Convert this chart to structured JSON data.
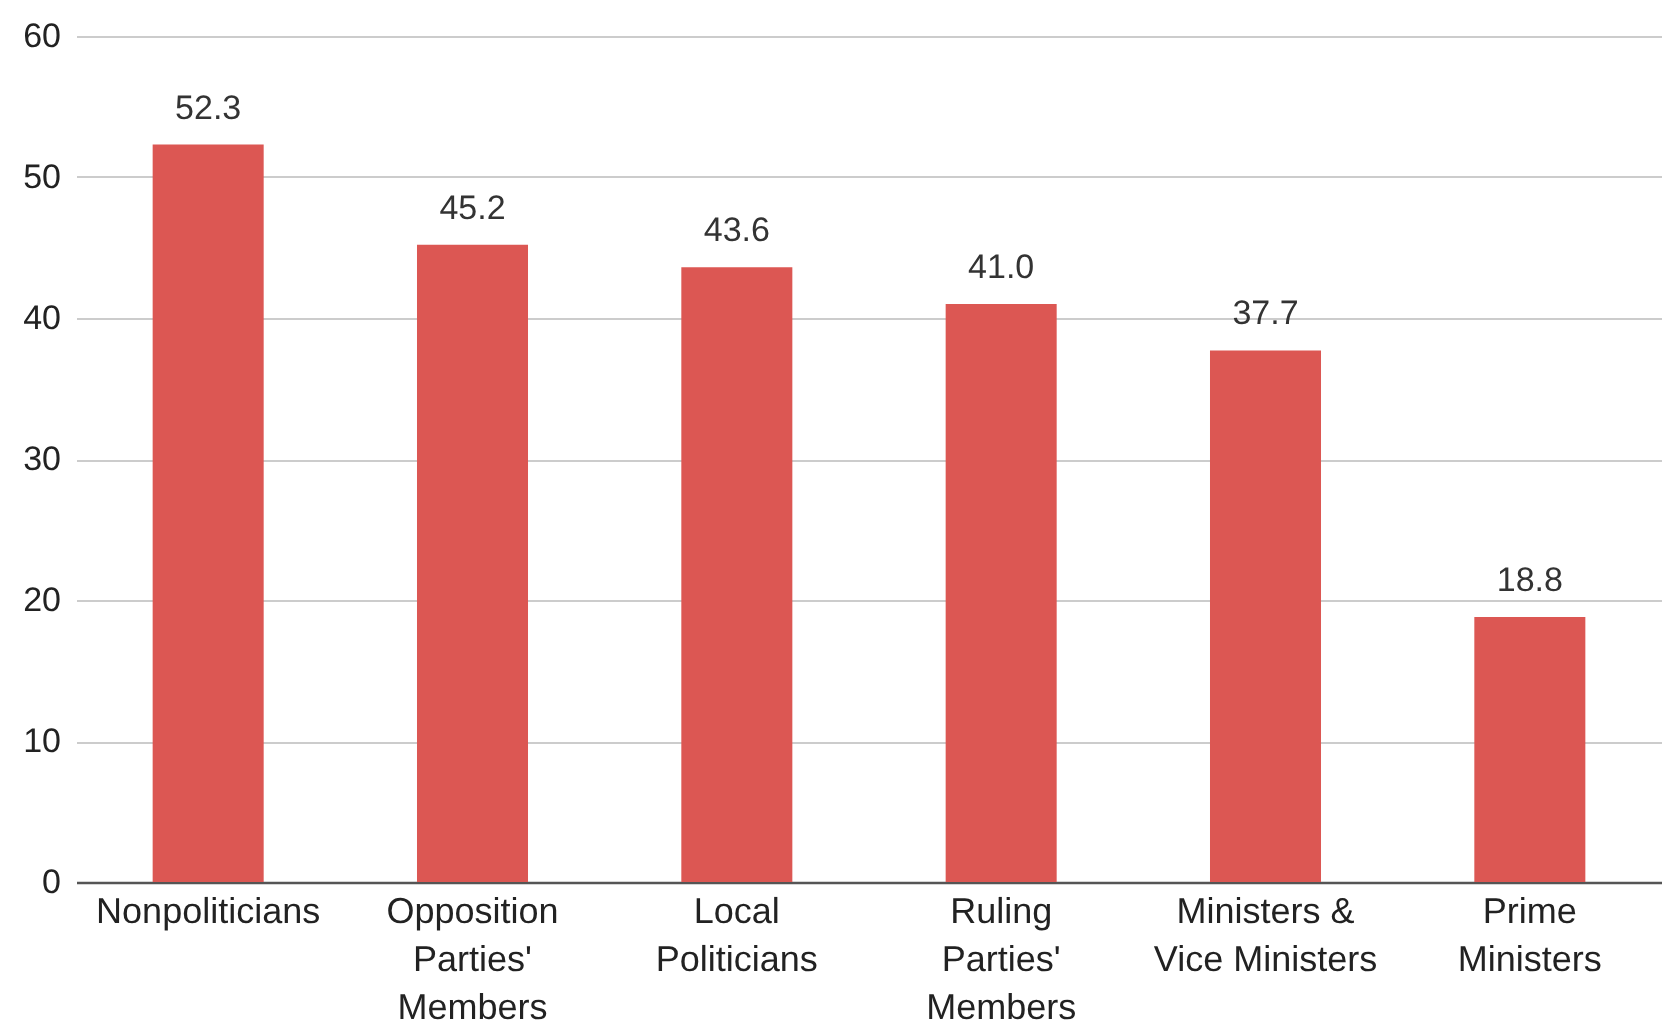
{
  "chart_data": {
    "type": "bar",
    "categories": [
      "Nonpoliticians",
      "Opposition Parties' Members",
      "Local Politicians",
      "Ruling Parties' Members",
      "Ministers & Vice Ministers",
      "Prime Ministers"
    ],
    "values": [
      52.3,
      45.2,
      43.6,
      41.0,
      37.7,
      18.8
    ],
    "value_labels": [
      "52.3",
      "45.2",
      "43.6",
      "41.0",
      "37.7",
      "18.8"
    ],
    "color": "#dc5753",
    "ylim": [
      0,
      60
    ],
    "yticks": [
      0,
      10,
      20,
      30,
      40,
      50,
      60
    ],
    "grid": "y"
  }
}
